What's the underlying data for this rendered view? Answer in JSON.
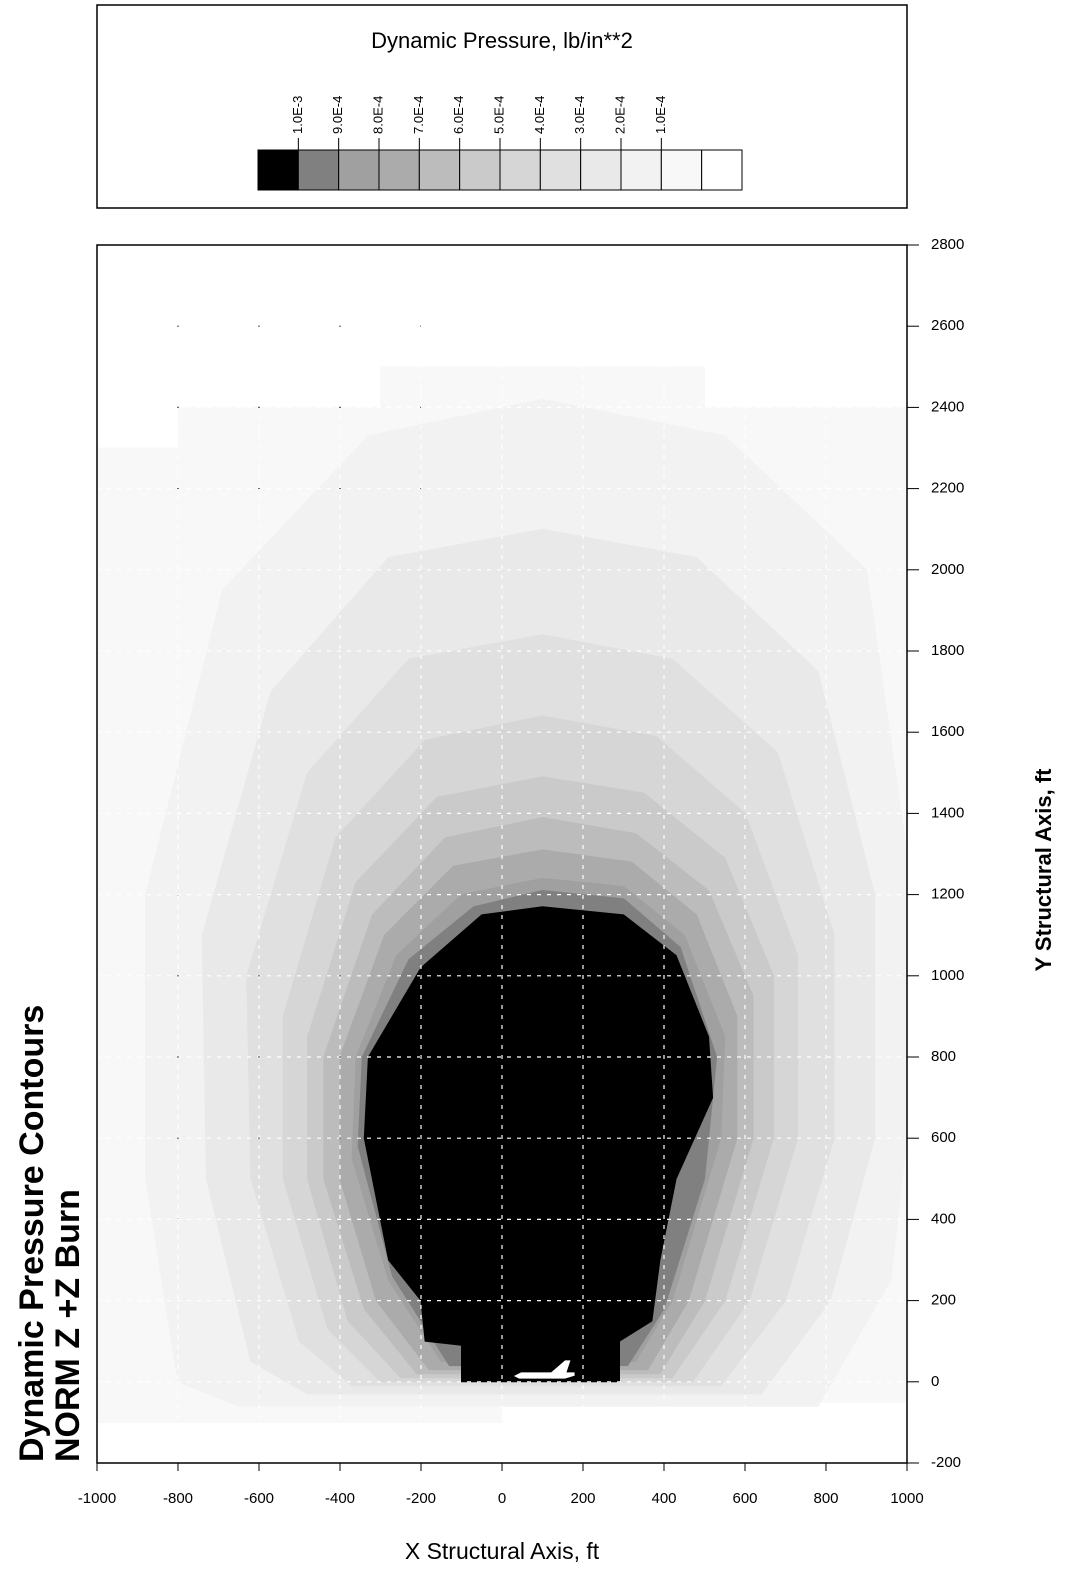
{
  "chart_data": {
    "type": "contour",
    "title": "Dynamic Pressure Contours",
    "subtitle": "NORM Z +Z Burn",
    "legend_title": "Dynamic Pressure, lb/in**2",
    "xlabel": "X Structural Axis, ft",
    "ylabel": "Y Structural Axis, ft",
    "xlim": [
      -1000,
      1000
    ],
    "ylim": [
      -200,
      2800
    ],
    "xticks": [
      -1000,
      -800,
      -600,
      -400,
      -200,
      0,
      200,
      400,
      600,
      800,
      1000
    ],
    "yticks": [
      -200,
      0,
      200,
      400,
      600,
      800,
      1000,
      1200,
      1400,
      1600,
      1800,
      2000,
      2200,
      2400,
      2600,
      2800
    ],
    "grid": true,
    "levels": [
      {
        "value": 0.001,
        "label": "1.0E-3"
      },
      {
        "value": 0.0009,
        "label": "9.0E-4"
      },
      {
        "value": 0.0008,
        "label": "8.0E-4"
      },
      {
        "value": 0.0007,
        "label": "7.0E-4"
      },
      {
        "value": 0.0006,
        "label": "6.0E-4"
      },
      {
        "value": 0.0005,
        "label": "5.0E-4"
      },
      {
        "value": 0.0004,
        "label": "4.0E-4"
      },
      {
        "value": 0.0003,
        "label": "3.0E-4"
      },
      {
        "value": 0.0002,
        "label": "2.0E-4"
      },
      {
        "value": 0.0001,
        "label": "1.0E-4"
      }
    ],
    "colors": [
      "#000000",
      "#808080",
      "#a0a0a0",
      "#ababab",
      "#bcbcbc",
      "#cacaca",
      "#d6d6d6",
      "#e0e0e0",
      "#e9e9e9",
      "#f2f2f2",
      "#f8f8f8",
      "#ffffff"
    ],
    "contours": [
      {
        "color": "#f8f8f8",
        "x": [
          -1000,
          0,
          0,
          1000,
          1000,
          500,
          500,
          -300,
          -300,
          -800,
          -800,
          -1000
        ],
        "y": [
          -100,
          -100,
          -50,
          -50,
          2400,
          2400,
          2500,
          2500,
          2400,
          2400,
          2300,
          2300
        ]
      },
      {
        "color": "#f2f2f2",
        "x": [
          -650,
          780,
          960,
          1000,
          1000,
          900,
          550,
          100,
          -330,
          -690,
          -880,
          -880,
          -800
        ],
        "y": [
          -60,
          -60,
          250,
          600,
          1300,
          2000,
          2330,
          2420,
          2330,
          1950,
          1200,
          500,
          0
        ]
      },
      {
        "color": "#e9e9e9",
        "x": [
          -480,
          640,
          810,
          920,
          920,
          780,
          480,
          100,
          -280,
          -570,
          -740,
          -730,
          -620
        ],
        "y": [
          -30,
          -30,
          200,
          600,
          1200,
          1750,
          2030,
          2100,
          2030,
          1700,
          1100,
          500,
          50
        ]
      },
      {
        "color": "#e0e0e0",
        "x": [
          -370,
          540,
          700,
          820,
          820,
          680,
          420,
          100,
          -230,
          -480,
          -630,
          -620,
          -500
        ],
        "y": [
          -10,
          -10,
          200,
          600,
          1100,
          1550,
          1780,
          1840,
          1780,
          1500,
          1000,
          500,
          100
        ]
      },
      {
        "color": "#d6d6d6",
        "x": [
          -300,
          470,
          610,
          730,
          730,
          600,
          380,
          100,
          -190,
          -410,
          -540,
          -540,
          -430
        ],
        "y": [
          0,
          0,
          200,
          600,
          1050,
          1400,
          1590,
          1640,
          1580,
          1340,
          900,
          500,
          130
        ]
      },
      {
        "color": "#cacaca",
        "x": [
          -250,
          420,
          550,
          670,
          670,
          550,
          350,
          100,
          -160,
          -360,
          -480,
          -480,
          -380
        ],
        "y": [
          10,
          10,
          200,
          600,
          1000,
          1290,
          1450,
          1490,
          1440,
          1230,
          850,
          500,
          150
        ]
      },
      {
        "color": "#bcbcbc",
        "x": [
          -210,
          390,
          500,
          620,
          620,
          510,
          330,
          100,
          -140,
          -320,
          -440,
          -440,
          -340
        ],
        "y": [
          20,
          20,
          200,
          600,
          950,
          1210,
          1350,
          1390,
          1340,
          1150,
          800,
          500,
          180
        ]
      },
      {
        "color": "#ababab",
        "x": [
          -180,
          360,
          460,
          580,
          580,
          480,
          320,
          100,
          -120,
          -290,
          -400,
          -400,
          -310
        ],
        "y": [
          30,
          30,
          200,
          600,
          900,
          1150,
          1280,
          1310,
          1270,
          1100,
          800,
          500,
          200
        ]
      },
      {
        "color": "#a0a0a0",
        "x": [
          -150,
          330,
          420,
          540,
          550,
          450,
          300,
          100,
          -100,
          -260,
          -360,
          -370,
          -280
        ],
        "y": [
          50,
          50,
          200,
          600,
          850,
          1100,
          1220,
          1240,
          1200,
          1050,
          800,
          550,
          250
        ]
      },
      {
        "color": "#808080",
        "x": [
          -130,
          310,
          400,
          500,
          530,
          440,
          300,
          100,
          -70,
          -230,
          -345,
          -355,
          -270
        ],
        "y": [
          40,
          40,
          180,
          500,
          800,
          1070,
          1190,
          1210,
          1170,
          1040,
          800,
          580,
          260
        ]
      },
      {
        "color": "#000000",
        "x": [
          -100,
          290,
          290,
          370,
          390,
          430,
          520,
          510,
          430,
          300,
          100,
          -50,
          -200,
          -330,
          -340,
          -280,
          -200,
          -190,
          -100
        ],
        "y": [
          0,
          0,
          100,
          150,
          300,
          500,
          700,
          850,
          1050,
          1150,
          1170,
          1150,
          1020,
          800,
          600,
          300,
          200,
          100,
          90
        ]
      }
    ]
  }
}
